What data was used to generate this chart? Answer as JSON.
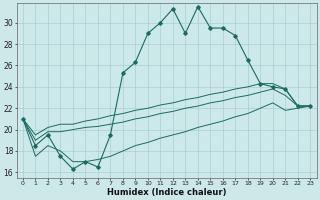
{
  "xlabel": "Humidex (Indice chaleur)",
  "bg_color": "#cce8e8",
  "grid_color": "#aacfcf",
  "line_color": "#1a6b60",
  "x": [
    0,
    1,
    2,
    3,
    4,
    5,
    6,
    7,
    8,
    9,
    10,
    11,
    12,
    13,
    14,
    15,
    16,
    17,
    18,
    19,
    20,
    21,
    22,
    23
  ],
  "y_main": [
    21.0,
    18.5,
    19.5,
    17.5,
    16.3,
    17.0,
    16.5,
    19.5,
    25.3,
    26.3,
    29.0,
    30.0,
    31.3,
    29.0,
    31.5,
    29.5,
    29.5,
    28.8,
    26.5,
    24.3,
    24.0,
    23.8,
    22.2,
    22.2
  ],
  "y_env_top": [
    21.0,
    19.5,
    20.2,
    20.5,
    20.5,
    20.8,
    21.0,
    21.3,
    21.5,
    21.8,
    22.0,
    22.3,
    22.5,
    22.8,
    23.0,
    23.3,
    23.5,
    23.8,
    24.0,
    24.3,
    24.3,
    23.8,
    22.2,
    22.2
  ],
  "y_env_mid": [
    21.0,
    19.0,
    19.8,
    19.8,
    20.0,
    20.2,
    20.3,
    20.5,
    20.7,
    21.0,
    21.2,
    21.5,
    21.7,
    22.0,
    22.2,
    22.5,
    22.7,
    23.0,
    23.2,
    23.5,
    23.8,
    23.2,
    22.2,
    22.2
  ],
  "y_env_bot": [
    21.0,
    17.5,
    18.5,
    18.0,
    17.0,
    17.0,
    17.2,
    17.5,
    18.0,
    18.5,
    18.8,
    19.2,
    19.5,
    19.8,
    20.2,
    20.5,
    20.8,
    21.2,
    21.5,
    22.0,
    22.5,
    21.8,
    22.0,
    22.2
  ],
  "ylim": [
    15.5,
    31.8
  ],
  "yticks": [
    16,
    18,
    20,
    22,
    24,
    26,
    28,
    30
  ],
  "xlim": [
    -0.5,
    23.5
  ],
  "xtick_labels": [
    "0",
    "1",
    "2",
    "3",
    "4",
    "5",
    "6",
    "7",
    "8",
    "9",
    "10",
    "11",
    "12",
    "13",
    "14",
    "15",
    "16",
    "17",
    "18",
    "19",
    "20",
    "21",
    "22",
    "23"
  ]
}
